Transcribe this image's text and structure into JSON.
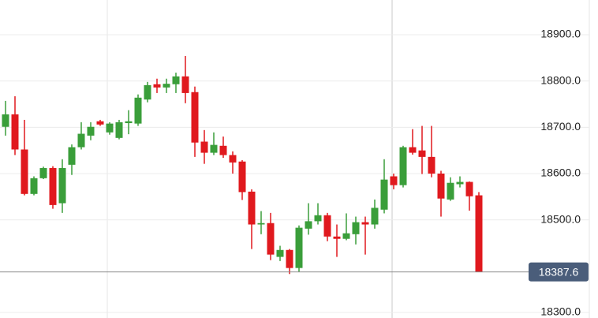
{
  "chart_data": {
    "type": "candlestick",
    "open": [
      18701,
      18728,
      18652,
      18556,
      18590,
      18612,
      18536,
      18619,
      18657,
      18682,
      18713,
      18689,
      18677,
      18709,
      18708,
      18760,
      18793,
      18786,
      18793,
      18810,
      18776,
      18669,
      18645,
      18660,
      18640,
      18626,
      18561,
      18490,
      18493,
      18420,
      18435,
      18396,
      18481,
      18497,
      18510,
      18464,
      18459,
      18469,
      18495,
      18490,
      18522,
      18594,
      18575,
      18657,
      18650,
      18636,
      18600,
      18544,
      18577,
      18582,
      18553
    ],
    "high": [
      18757,
      18767,
      18716,
      18594,
      18615,
      18616,
      18631,
      18663,
      18711,
      18711,
      18716,
      18711,
      18716,
      18737,
      18771,
      18798,
      18805,
      18805,
      18818,
      18854,
      18788,
      18694,
      18689,
      18680,
      18648,
      18629,
      18566,
      18519,
      18515,
      18444,
      18437,
      18488,
      18536,
      18536,
      18515,
      18490,
      18514,
      18507,
      18507,
      18544,
      18631,
      18600,
      18660,
      18696,
      18703,
      18703,
      18606,
      18592,
      18594,
      18583,
      18560
    ],
    "low": [
      18682,
      18640,
      18553,
      18553,
      18588,
      18524,
      18515,
      18597,
      18652,
      18672,
      18703,
      18684,
      18674,
      18685,
      18703,
      18754,
      18774,
      18774,
      18774,
      18752,
      18636,
      18621,
      18640,
      18634,
      18600,
      18543,
      18437,
      18469,
      18413,
      18411,
      18383,
      18388,
      18468,
      18490,
      18454,
      18420,
      18456,
      18447,
      18425,
      18481,
      18514,
      18566,
      18570,
      18641,
      18599,
      18592,
      18507,
      18541,
      18570,
      18520,
      18387.6
    ],
    "close": [
      18728,
      18652,
      18556,
      18590,
      18612,
      18532,
      18612,
      18657,
      18686,
      18701,
      18706,
      18708,
      18711,
      18713,
      18764,
      18791,
      18786,
      18794,
      18810,
      18774,
      18667,
      18645,
      18662,
      18640,
      18624,
      18560,
      18490,
      18493,
      18425,
      18435,
      18396,
      18483,
      18497,
      18510,
      18464,
      18459,
      18471,
      18495,
      18490,
      18526,
      18587,
      18575,
      18657,
      18645,
      18636,
      18600,
      18546,
      18580,
      18582,
      18551,
      18387.6
    ],
    "up_color": "#3a9e3a",
    "down_color": "#e0191e",
    "ylim": [
      18288,
      18975
    ],
    "yticks": [
      {
        "value": 18900,
        "label": "18900.0"
      },
      {
        "value": 18800,
        "label": "18800.0"
      },
      {
        "value": 18700,
        "label": "18700.0"
      },
      {
        "value": 18600,
        "label": "18600.0"
      },
      {
        "value": 18500,
        "label": "18500.0"
      },
      {
        "value": 18300,
        "label": "18300.0"
      }
    ],
    "grid": true,
    "last_price": 18387.6
  }
}
